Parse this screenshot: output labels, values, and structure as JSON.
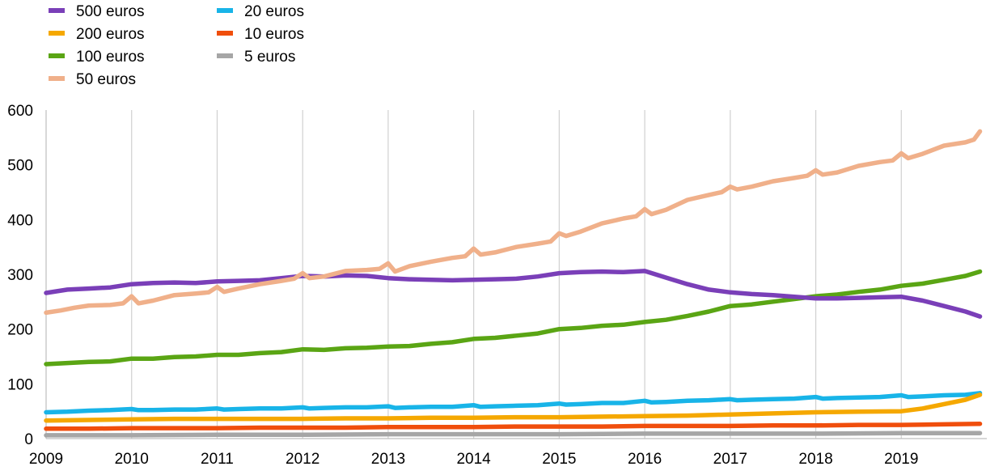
{
  "chart_data": {
    "type": "line",
    "title": "",
    "xlabel": "",
    "ylabel": "",
    "ylim": [
      0,
      600
    ],
    "yticks": [
      0,
      100,
      200,
      300,
      400,
      500,
      600
    ],
    "xlim": [
      2009,
      2020
    ],
    "xticks": [
      "2009",
      "2010",
      "2011",
      "2012",
      "2013",
      "2014",
      "2015",
      "2016",
      "2017",
      "2018",
      "2019"
    ],
    "grid": "vertical",
    "legend_position": "top-left",
    "series": [
      {
        "name": "500 euros",
        "color": "#7a3fb8",
        "points": [
          [
            2009.0,
            266
          ],
          [
            2009.25,
            272
          ],
          [
            2009.5,
            274
          ],
          [
            2009.75,
            276
          ],
          [
            2010.0,
            282
          ],
          [
            2010.25,
            284
          ],
          [
            2010.5,
            285
          ],
          [
            2010.75,
            284
          ],
          [
            2011.0,
            287
          ],
          [
            2011.25,
            288
          ],
          [
            2011.5,
            289
          ],
          [
            2011.75,
            293
          ],
          [
            2012.0,
            297
          ],
          [
            2012.25,
            296
          ],
          [
            2012.5,
            298
          ],
          [
            2012.75,
            297
          ],
          [
            2013.0,
            293
          ],
          [
            2013.25,
            291
          ],
          [
            2013.5,
            290
          ],
          [
            2013.75,
            289
          ],
          [
            2014.0,
            290
          ],
          [
            2014.25,
            291
          ],
          [
            2014.5,
            292
          ],
          [
            2014.75,
            296
          ],
          [
            2015.0,
            302
          ],
          [
            2015.25,
            304
          ],
          [
            2015.5,
            305
          ],
          [
            2015.75,
            304
          ],
          [
            2016.0,
            306
          ],
          [
            2016.25,
            294
          ],
          [
            2016.5,
            282
          ],
          [
            2016.75,
            272
          ],
          [
            2017.0,
            267
          ],
          [
            2017.25,
            264
          ],
          [
            2017.5,
            262
          ],
          [
            2017.75,
            259
          ],
          [
            2018.0,
            256
          ],
          [
            2018.25,
            256
          ],
          [
            2018.5,
            257
          ],
          [
            2018.75,
            258
          ],
          [
            2019.0,
            259
          ],
          [
            2019.25,
            252
          ],
          [
            2019.5,
            242
          ],
          [
            2019.75,
            232
          ],
          [
            2019.92,
            223
          ]
        ]
      },
      {
        "name": "200 euros",
        "color": "#f5a800",
        "points": [
          [
            2009.0,
            33
          ],
          [
            2009.5,
            34
          ],
          [
            2010.0,
            35
          ],
          [
            2010.5,
            36
          ],
          [
            2011.0,
            36
          ],
          [
            2011.5,
            36
          ],
          [
            2012.0,
            36
          ],
          [
            2012.5,
            37
          ],
          [
            2013.0,
            37
          ],
          [
            2013.5,
            38
          ],
          [
            2014.0,
            38
          ],
          [
            2014.5,
            39
          ],
          [
            2015.0,
            39
          ],
          [
            2015.5,
            40
          ],
          [
            2016.0,
            41
          ],
          [
            2016.5,
            42
          ],
          [
            2017.0,
            44
          ],
          [
            2017.5,
            46
          ],
          [
            2018.0,
            48
          ],
          [
            2018.5,
            49
          ],
          [
            2019.0,
            50
          ],
          [
            2019.25,
            55
          ],
          [
            2019.5,
            63
          ],
          [
            2019.75,
            71
          ],
          [
            2019.92,
            80
          ]
        ]
      },
      {
        "name": "100 euros",
        "color": "#5aa514",
        "points": [
          [
            2009.0,
            136
          ],
          [
            2009.25,
            138
          ],
          [
            2009.5,
            140
          ],
          [
            2009.75,
            141
          ],
          [
            2010.0,
            146
          ],
          [
            2010.25,
            146
          ],
          [
            2010.5,
            149
          ],
          [
            2010.75,
            150
          ],
          [
            2011.0,
            153
          ],
          [
            2011.25,
            153
          ],
          [
            2011.5,
            156
          ],
          [
            2011.75,
            158
          ],
          [
            2012.0,
            163
          ],
          [
            2012.25,
            162
          ],
          [
            2012.5,
            165
          ],
          [
            2012.75,
            166
          ],
          [
            2013.0,
            168
          ],
          [
            2013.25,
            169
          ],
          [
            2013.5,
            173
          ],
          [
            2013.75,
            176
          ],
          [
            2014.0,
            182
          ],
          [
            2014.25,
            184
          ],
          [
            2014.5,
            188
          ],
          [
            2014.75,
            192
          ],
          [
            2015.0,
            200
          ],
          [
            2015.25,
            202
          ],
          [
            2015.5,
            206
          ],
          [
            2015.75,
            208
          ],
          [
            2016.0,
            213
          ],
          [
            2016.25,
            217
          ],
          [
            2016.5,
            224
          ],
          [
            2016.75,
            232
          ],
          [
            2017.0,
            242
          ],
          [
            2017.25,
            245
          ],
          [
            2017.5,
            250
          ],
          [
            2017.75,
            255
          ],
          [
            2018.0,
            260
          ],
          [
            2018.25,
            263
          ],
          [
            2018.5,
            268
          ],
          [
            2018.75,
            272
          ],
          [
            2019.0,
            279
          ],
          [
            2019.25,
            283
          ],
          [
            2019.5,
            290
          ],
          [
            2019.75,
            297
          ],
          [
            2019.92,
            305
          ]
        ]
      },
      {
        "name": "50 euros",
        "color": "#f0b08a",
        "points": [
          [
            2009.0,
            230
          ],
          [
            2009.17,
            234
          ],
          [
            2009.33,
            239
          ],
          [
            2009.5,
            243
          ],
          [
            2009.75,
            244
          ],
          [
            2009.9,
            247
          ],
          [
            2010.0,
            260
          ],
          [
            2010.08,
            247
          ],
          [
            2010.25,
            252
          ],
          [
            2010.5,
            262
          ],
          [
            2010.75,
            265
          ],
          [
            2010.9,
            267
          ],
          [
            2011.0,
            277
          ],
          [
            2011.08,
            268
          ],
          [
            2011.25,
            274
          ],
          [
            2011.5,
            282
          ],
          [
            2011.75,
            288
          ],
          [
            2011.9,
            292
          ],
          [
            2012.0,
            302
          ],
          [
            2012.08,
            293
          ],
          [
            2012.25,
            296
          ],
          [
            2012.5,
            306
          ],
          [
            2012.75,
            308
          ],
          [
            2012.9,
            310
          ],
          [
            2013.0,
            320
          ],
          [
            2013.08,
            305
          ],
          [
            2013.25,
            315
          ],
          [
            2013.5,
            323
          ],
          [
            2013.75,
            330
          ],
          [
            2013.9,
            333
          ],
          [
            2014.0,
            347
          ],
          [
            2014.08,
            336
          ],
          [
            2014.25,
            340
          ],
          [
            2014.5,
            350
          ],
          [
            2014.75,
            356
          ],
          [
            2014.9,
            360
          ],
          [
            2015.0,
            375
          ],
          [
            2015.08,
            370
          ],
          [
            2015.25,
            378
          ],
          [
            2015.5,
            393
          ],
          [
            2015.75,
            402
          ],
          [
            2015.9,
            406
          ],
          [
            2016.0,
            419
          ],
          [
            2016.08,
            410
          ],
          [
            2016.25,
            418
          ],
          [
            2016.5,
            436
          ],
          [
            2016.75,
            445
          ],
          [
            2016.9,
            450
          ],
          [
            2017.0,
            460
          ],
          [
            2017.08,
            455
          ],
          [
            2017.25,
            460
          ],
          [
            2017.5,
            470
          ],
          [
            2017.75,
            476
          ],
          [
            2017.9,
            480
          ],
          [
            2018.0,
            490
          ],
          [
            2018.08,
            482
          ],
          [
            2018.25,
            486
          ],
          [
            2018.5,
            498
          ],
          [
            2018.75,
            505
          ],
          [
            2018.9,
            508
          ],
          [
            2019.0,
            521
          ],
          [
            2019.08,
            512
          ],
          [
            2019.25,
            520
          ],
          [
            2019.5,
            535
          ],
          [
            2019.75,
            541
          ],
          [
            2019.85,
            546
          ],
          [
            2019.92,
            561
          ]
        ]
      },
      {
        "name": "20 euros",
        "color": "#18b4e8",
        "points": [
          [
            2009.0,
            48
          ],
          [
            2009.25,
            49
          ],
          [
            2009.5,
            51
          ],
          [
            2009.75,
            52
          ],
          [
            2010.0,
            54
          ],
          [
            2010.08,
            52
          ],
          [
            2010.25,
            52
          ],
          [
            2010.5,
            53
          ],
          [
            2010.75,
            53
          ],
          [
            2011.0,
            55
          ],
          [
            2011.08,
            53
          ],
          [
            2011.25,
            54
          ],
          [
            2011.5,
            55
          ],
          [
            2011.75,
            55
          ],
          [
            2012.0,
            57
          ],
          [
            2012.08,
            55
          ],
          [
            2012.25,
            56
          ],
          [
            2012.5,
            57
          ],
          [
            2012.75,
            57
          ],
          [
            2013.0,
            59
          ],
          [
            2013.08,
            56
          ],
          [
            2013.25,
            57
          ],
          [
            2013.5,
            58
          ],
          [
            2013.75,
            58
          ],
          [
            2014.0,
            61
          ],
          [
            2014.08,
            58
          ],
          [
            2014.25,
            59
          ],
          [
            2014.5,
            60
          ],
          [
            2014.75,
            61
          ],
          [
            2015.0,
            64
          ],
          [
            2015.08,
            62
          ],
          [
            2015.25,
            63
          ],
          [
            2015.5,
            65
          ],
          [
            2015.75,
            65
          ],
          [
            2016.0,
            69
          ],
          [
            2016.08,
            66
          ],
          [
            2016.25,
            67
          ],
          [
            2016.5,
            69
          ],
          [
            2016.75,
            70
          ],
          [
            2017.0,
            72
          ],
          [
            2017.08,
            70
          ],
          [
            2017.25,
            71
          ],
          [
            2017.5,
            72
          ],
          [
            2017.75,
            73
          ],
          [
            2018.0,
            76
          ],
          [
            2018.08,
            73
          ],
          [
            2018.25,
            74
          ],
          [
            2018.5,
            75
          ],
          [
            2018.75,
            76
          ],
          [
            2019.0,
            79
          ],
          [
            2019.08,
            76
          ],
          [
            2019.25,
            77
          ],
          [
            2019.5,
            79
          ],
          [
            2019.75,
            80
          ],
          [
            2019.92,
            83
          ]
        ]
      },
      {
        "name": "10 euros",
        "color": "#f04e0c",
        "points": [
          [
            2009.0,
            18
          ],
          [
            2009.5,
            18
          ],
          [
            2010.0,
            19
          ],
          [
            2010.5,
            19
          ],
          [
            2011.0,
            19
          ],
          [
            2011.5,
            20
          ],
          [
            2012.0,
            20
          ],
          [
            2012.5,
            20
          ],
          [
            2013.0,
            21
          ],
          [
            2013.5,
            21
          ],
          [
            2014.0,
            21
          ],
          [
            2014.5,
            22
          ],
          [
            2015.0,
            22
          ],
          [
            2015.5,
            22
          ],
          [
            2016.0,
            23
          ],
          [
            2016.5,
            23
          ],
          [
            2017.0,
            23
          ],
          [
            2017.5,
            24
          ],
          [
            2018.0,
            24
          ],
          [
            2018.5,
            25
          ],
          [
            2019.0,
            25
          ],
          [
            2019.5,
            26
          ],
          [
            2019.92,
            27
          ]
        ]
      },
      {
        "name": "5 euros",
        "color": "#a6a6a6",
        "points": [
          [
            2009.0,
            6
          ],
          [
            2010.0,
            6
          ],
          [
            2011.0,
            7
          ],
          [
            2012.0,
            7
          ],
          [
            2013.0,
            8
          ],
          [
            2014.0,
            8
          ],
          [
            2015.0,
            8
          ],
          [
            2016.0,
            9
          ],
          [
            2017.0,
            9
          ],
          [
            2018.0,
            9
          ],
          [
            2019.0,
            10
          ],
          [
            2019.92,
            10
          ]
        ]
      }
    ]
  }
}
